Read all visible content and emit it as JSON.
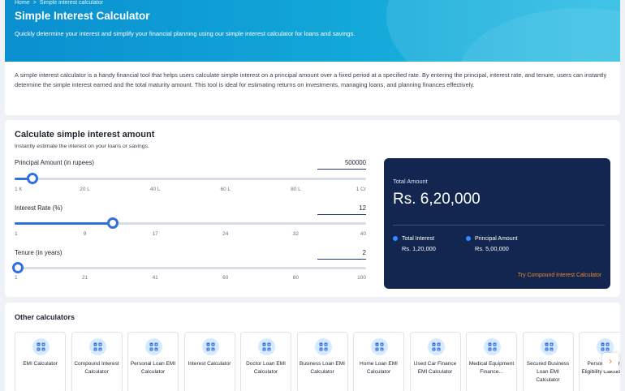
{
  "breadcrumb": {
    "home": "Home",
    "sep": ">",
    "current": "Simple interest calculator"
  },
  "header": {
    "title": "Simple Interest Calculator",
    "subtitle": "Quickly determine your interest and simplify your financial planning using our simple interest calculator for loans and savings."
  },
  "description": "A simple interest calculator is a handy financial tool that helps users calculate simple interest on a principal amount over a fixed period at a specified rate. By entering the principal, interest rate, and tenure, users can instantly determine the simple interest earned and the total maturity amount. This tool is ideal for estimating returns on investments, managing loans, and planning finances effectively.",
  "calculator": {
    "title": "Calculate simple interest amount",
    "subtitle": "Instantly estimate the interest on your loans or savings.",
    "principal": {
      "label": "Principal Amount (in rupees)",
      "value": "500000",
      "fraction": 0.05,
      "ticks": [
        "1 K",
        "20 L",
        "40 L",
        "60 L",
        "80 L",
        "1 Cr"
      ]
    },
    "rate": {
      "label": "Interest Rate (%)",
      "value": "12",
      "fraction": 0.28,
      "ticks": [
        "1",
        "9",
        "17",
        "24",
        "32",
        "40"
      ]
    },
    "tenure": {
      "label": "Tenure (in years)",
      "value": "2",
      "fraction": 0.01,
      "ticks": [
        "1",
        "21",
        "41",
        "60",
        "80",
        "100"
      ]
    }
  },
  "result": {
    "total_label": "Total Amount",
    "total_value": "Rs. 6,20,000",
    "interest_label": "Total Interest",
    "interest_value": "Rs. 1,20,000",
    "principal_label": "Principal Amount",
    "principal_value": "Rs. 5,00,000",
    "link": "Try Compound Interest Calculator",
    "accent": "#f08a2e",
    "panel_color": "#12264f"
  },
  "others": {
    "title": "Other calculators",
    "items": [
      "EMI Calculator",
      "Compound Interest Calculator",
      "Personal Loan EMI Calculator",
      "Interest Calculator",
      "Doctor Loan EMI Calculator",
      "Business Loan EMI Calculator",
      "Home Loan EMI Calculator",
      "Used Car Finance EMI Calculator",
      "Medical Equipment Finance...",
      "Secured Business Loan EMI Calculator",
      "Personal Loan Eligibility Calculator"
    ],
    "next_icon": "chevron-right-icon"
  }
}
